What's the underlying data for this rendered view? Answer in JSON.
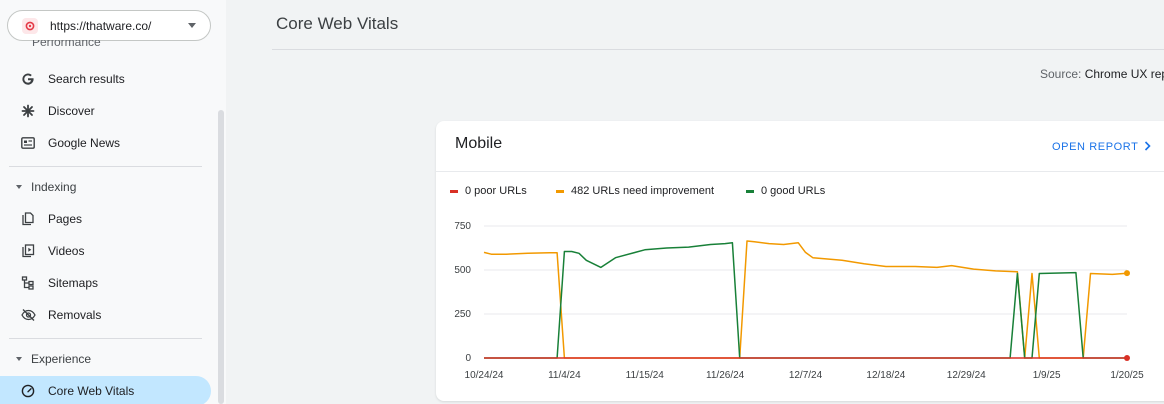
{
  "property": {
    "url": "https://thatware.co/"
  },
  "sidebar": {
    "clipped_label": "Performance",
    "performance_items": [
      {
        "label": "Search results",
        "icon": "google-g-icon"
      },
      {
        "label": "Discover",
        "icon": "asterisk-icon"
      },
      {
        "label": "Google News",
        "icon": "news-icon"
      }
    ],
    "indexing": {
      "label": "Indexing",
      "items": [
        {
          "label": "Pages",
          "icon": "pages-icon"
        },
        {
          "label": "Videos",
          "icon": "video-icon"
        },
        {
          "label": "Sitemaps",
          "icon": "sitemap-icon"
        },
        {
          "label": "Removals",
          "icon": "removals-eye-icon"
        }
      ]
    },
    "experience": {
      "label": "Experience",
      "items": [
        {
          "label": "Core Web Vitals",
          "icon": "gauge-icon",
          "active": true
        }
      ]
    }
  },
  "page": {
    "title": "Core Web Vitals",
    "source_label": "Source:",
    "source_value": "Chrome UX rep"
  },
  "card": {
    "title": "Mobile",
    "open_report": "OPEN REPORT",
    "legend": [
      {
        "label": "0 poor URLs",
        "color": "#d93025"
      },
      {
        "label": "482 URLs need improvement",
        "color": "#f29900"
      },
      {
        "label": "0 good URLs",
        "color": "#188038"
      }
    ]
  },
  "chart_data": {
    "type": "line",
    "x_ticks": [
      "10/24/24",
      "11/4/24",
      "11/15/24",
      "11/26/24",
      "12/7/24",
      "12/18/24",
      "12/29/24",
      "1/9/25",
      "1/20/25"
    ],
    "y_ticks": [
      "750",
      "500",
      "250",
      "0"
    ],
    "ylim": [
      0,
      750
    ],
    "xlabel": "",
    "ylabel": "",
    "grid": true,
    "x_range": [
      "10/24/24",
      "1/20/25"
    ],
    "series": [
      {
        "name": "poor URLs",
        "color": "#d93025",
        "points": [
          [
            "10/24/24",
            0
          ],
          [
            "1/20/25",
            0
          ]
        ]
      },
      {
        "name": "URLs need improvement",
        "color": "#f29900",
        "points": [
          [
            "10/24/24",
            600
          ],
          [
            "10/25/24",
            590
          ],
          [
            "10/27/24",
            590
          ],
          [
            "10/30/24",
            595
          ],
          [
            "11/2/24",
            598
          ],
          [
            "11/3/24",
            598
          ],
          [
            "11/4/24",
            0
          ],
          [
            "11/5/24",
            0
          ],
          [
            "11/28/24",
            0
          ],
          [
            "11/29/24",
            665
          ],
          [
            "11/30/24",
            660
          ],
          [
            "12/2/24",
            650
          ],
          [
            "12/4/24",
            645
          ],
          [
            "12/6/24",
            655
          ],
          [
            "12/7/24",
            600
          ],
          [
            "12/8/24",
            570
          ],
          [
            "12/12/24",
            555
          ],
          [
            "12/15/24",
            535
          ],
          [
            "12/18/24",
            520
          ],
          [
            "12/22/24",
            520
          ],
          [
            "12/25/24",
            515
          ],
          [
            "12/27/24",
            525
          ],
          [
            "12/30/24",
            505
          ],
          [
            "1/2/25",
            495
          ],
          [
            "1/5/25",
            490
          ],
          [
            "1/6/25",
            0
          ],
          [
            "1/7/25",
            480
          ],
          [
            "1/8/25",
            0
          ],
          [
            "1/14/25",
            0
          ],
          [
            "1/15/25",
            480
          ],
          [
            "1/18/25",
            475
          ],
          [
            "1/20/25",
            482
          ]
        ]
      },
      {
        "name": "good URLs",
        "color": "#188038",
        "points": [
          [
            "10/24/24",
            0
          ],
          [
            "11/3/24",
            0
          ],
          [
            "11/4/24",
            605
          ],
          [
            "11/5/24",
            605
          ],
          [
            "11/6/24",
            595
          ],
          [
            "11/7/24",
            555
          ],
          [
            "11/9/24",
            515
          ],
          [
            "11/11/24",
            570
          ],
          [
            "11/15/24",
            615
          ],
          [
            "11/18/24",
            625
          ],
          [
            "11/21/24",
            630
          ],
          [
            "11/24/24",
            645
          ],
          [
            "11/26/24",
            650
          ],
          [
            "11/27/24",
            655
          ],
          [
            "11/28/24",
            0
          ],
          [
            "1/4/25",
            0
          ],
          [
            "1/5/25",
            480
          ],
          [
            "1/6/25",
            0
          ],
          [
            "1/7/25",
            0
          ],
          [
            "1/8/25",
            480
          ],
          [
            "1/13/25",
            485
          ],
          [
            "1/14/25",
            0
          ],
          [
            "1/20/25",
            0
          ]
        ]
      }
    ]
  }
}
